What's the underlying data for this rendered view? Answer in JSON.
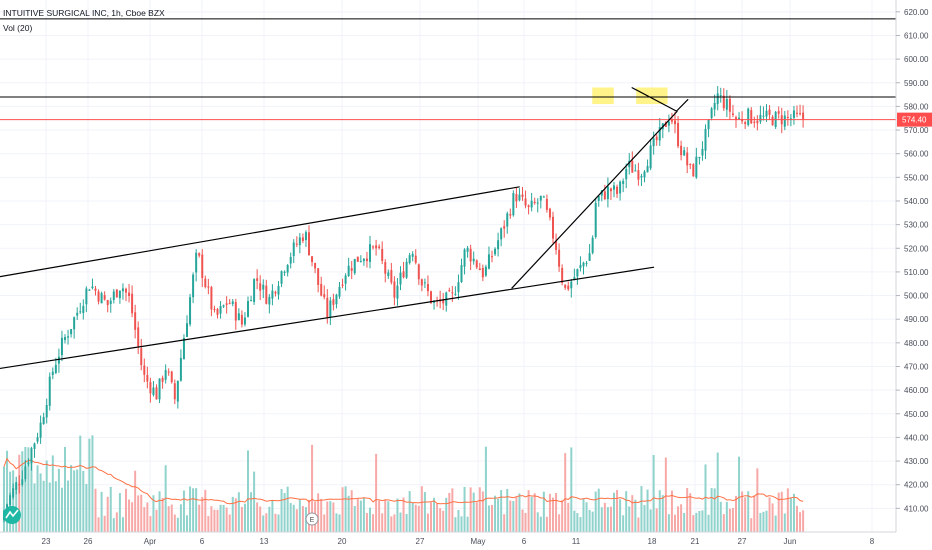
{
  "header": {
    "title": "INTUITIVE SURGICAL INC, 1h, Cboe BZX",
    "volume_indicator": "Vol (20)"
  },
  "colors": {
    "up": "#26a69a",
    "down": "#ef5350",
    "vol_up": "#8fd3cc",
    "vol_down": "#f7a9a7",
    "vol_ma": "#ff7043",
    "price_line": "#ff4d4d",
    "trendline": "#000000",
    "highlight": "#fff176",
    "grid": "#f0f3fa",
    "logo": "#1eb8a4"
  },
  "chart_data": {
    "type": "candlestick",
    "y_axis": {
      "min": 400,
      "max": 625,
      "tick_labels": [
        "620.00",
        "610.00",
        "600.00",
        "590.00",
        "580.00",
        "570.00",
        "560.00",
        "550.00",
        "540.00",
        "530.00",
        "520.00",
        "510.00",
        "500.00",
        "490.00",
        "480.00",
        "470.00",
        "460.00",
        "450.00",
        "440.00",
        "430.00",
        "420.00",
        "410.00"
      ]
    },
    "x_axis": {
      "tick_labels": [
        "23",
        "26",
        "Apr",
        "6",
        "13",
        "20",
        "27",
        "May",
        "6",
        "11",
        "18",
        "21",
        "27",
        "Jun",
        "8"
      ]
    },
    "last_price": {
      "value": 574.4,
      "label": "574.40"
    },
    "horizontal_lines": [
      617,
      584
    ],
    "channel": {
      "upper": [
        [
          0.0,
          508
        ],
        [
          0.58,
          546
        ]
      ],
      "lower": [
        [
          -0.02,
          468
        ],
        [
          0.73,
          512
        ]
      ]
    },
    "wedge": {
      "rising_support": [
        [
          0.571,
          503
        ],
        [
          0.756,
          578
        ]
      ],
      "falling_resistance": [
        [
          0.705,
          588
        ],
        [
          0.755,
          578
        ]
      ]
    },
    "highlight_zones": [
      {
        "x_start_frac": 0.661,
        "x_end_frac": 0.685,
        "y_top": 588,
        "y_bottom": 581
      },
      {
        "x_start_frac": 0.71,
        "x_end_frac": 0.745,
        "y_top": 588,
        "y_bottom": 581
      }
    ],
    "price_path": [
      [
        0.0,
        405
      ],
      [
        0.01,
        414
      ],
      [
        0.025,
        425
      ],
      [
        0.045,
        445
      ],
      [
        0.06,
        470
      ],
      [
        0.07,
        480
      ],
      [
        0.085,
        492
      ],
      [
        0.1,
        505
      ],
      [
        0.12,
        496
      ],
      [
        0.135,
        505
      ],
      [
        0.145,
        498
      ],
      [
        0.16,
        466
      ],
      [
        0.175,
        458
      ],
      [
        0.185,
        470
      ],
      [
        0.195,
        456
      ],
      [
        0.205,
        482
      ],
      [
        0.22,
        518
      ],
      [
        0.24,
        490
      ],
      [
        0.255,
        498
      ],
      [
        0.27,
        488
      ],
      [
        0.285,
        508
      ],
      [
        0.3,
        498
      ],
      [
        0.32,
        515
      ],
      [
        0.34,
        527
      ],
      [
        0.355,
        505
      ],
      [
        0.365,
        492
      ],
      [
        0.385,
        510
      ],
      [
        0.4,
        516
      ],
      [
        0.42,
        520
      ],
      [
        0.44,
        500
      ],
      [
        0.46,
        521
      ],
      [
        0.47,
        506
      ],
      [
        0.485,
        496
      ],
      [
        0.505,
        499
      ],
      [
        0.52,
        520
      ],
      [
        0.54,
        509
      ],
      [
        0.56,
        527
      ],
      [
        0.575,
        543
      ],
      [
        0.59,
        536
      ],
      [
        0.605,
        541
      ],
      [
        0.62,
        522
      ],
      [
        0.63,
        502
      ],
      [
        0.645,
        510
      ],
      [
        0.66,
        519
      ],
      [
        0.665,
        540
      ],
      [
        0.68,
        545
      ],
      [
        0.69,
        543
      ],
      [
        0.7,
        555
      ],
      [
        0.715,
        552
      ],
      [
        0.725,
        560
      ],
      [
        0.738,
        569
      ],
      [
        0.748,
        577
      ],
      [
        0.76,
        562
      ],
      [
        0.772,
        551
      ],
      [
        0.79,
        570
      ],
      [
        0.8,
        585
      ],
      [
        0.812,
        580
      ],
      [
        0.822,
        574
      ],
      [
        0.832,
        576
      ],
      [
        0.845,
        575
      ]
    ],
    "volume": {
      "max_value": 1,
      "ma_label": "Vol (20)"
    }
  }
}
